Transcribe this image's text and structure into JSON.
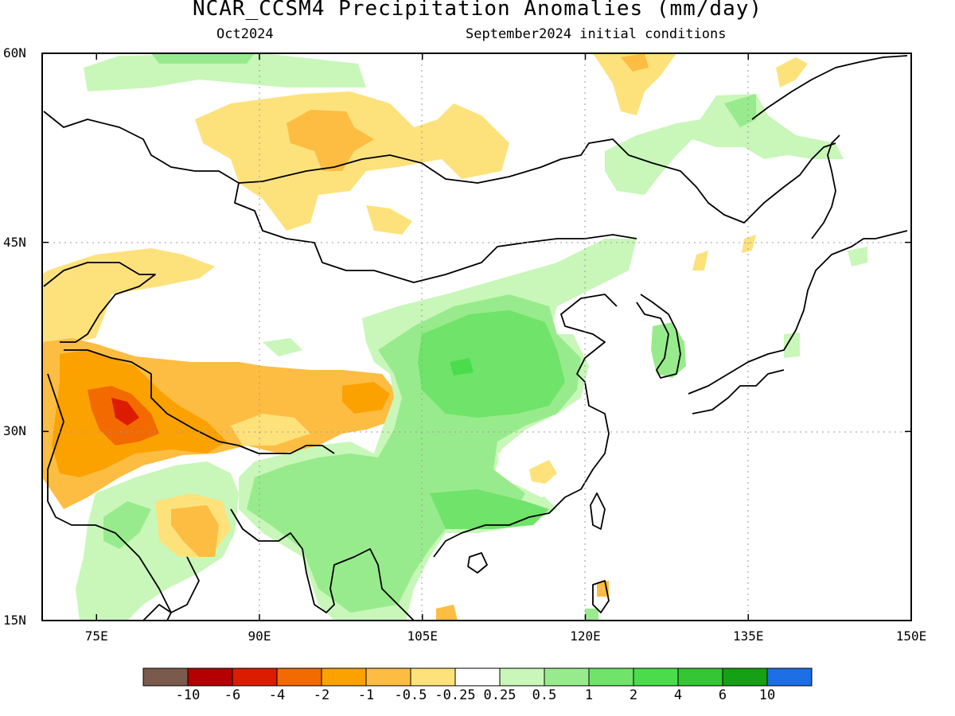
{
  "title": "NCAR_CCSM4 Precipitation Anomalies (mm/day)",
  "subtitle_left": "Oct2024",
  "subtitle_right": "September2024 initial conditions",
  "map": {
    "lat_range": [
      15,
      60
    ],
    "lon_range": [
      70,
      150
    ],
    "lat_ticks": [
      {
        "value": 60,
        "label": "60N"
      },
      {
        "value": 45,
        "label": "45N"
      },
      {
        "value": 30,
        "label": "30N"
      },
      {
        "value": 15,
        "label": "15N"
      }
    ],
    "lon_ticks": [
      {
        "value": 75,
        "label": "75E"
      },
      {
        "value": 90,
        "label": "90E"
      },
      {
        "value": 105,
        "label": "105E"
      },
      {
        "value": 120,
        "label": "120E"
      },
      {
        "value": 135,
        "label": "135E"
      },
      {
        "value": 150,
        "label": "150E"
      }
    ],
    "grid": true
  },
  "colorbar": {
    "colors": [
      "#7a5a4c",
      "#b40000",
      "#dc1c00",
      "#f26a00",
      "#fba200",
      "#fdbd42",
      "#fde27c",
      "#ffffff",
      "#c8f7b9",
      "#98eb8c",
      "#6fe36a",
      "#4bdc4b",
      "#34c634",
      "#15a015",
      "#1e6fe6"
    ],
    "labels": [
      "-10",
      "-6",
      "-4",
      "-2",
      "-1",
      "-0.5",
      "-0.25",
      "0.25",
      "0.5",
      "1",
      "2",
      "4",
      "6",
      "10"
    ]
  }
}
